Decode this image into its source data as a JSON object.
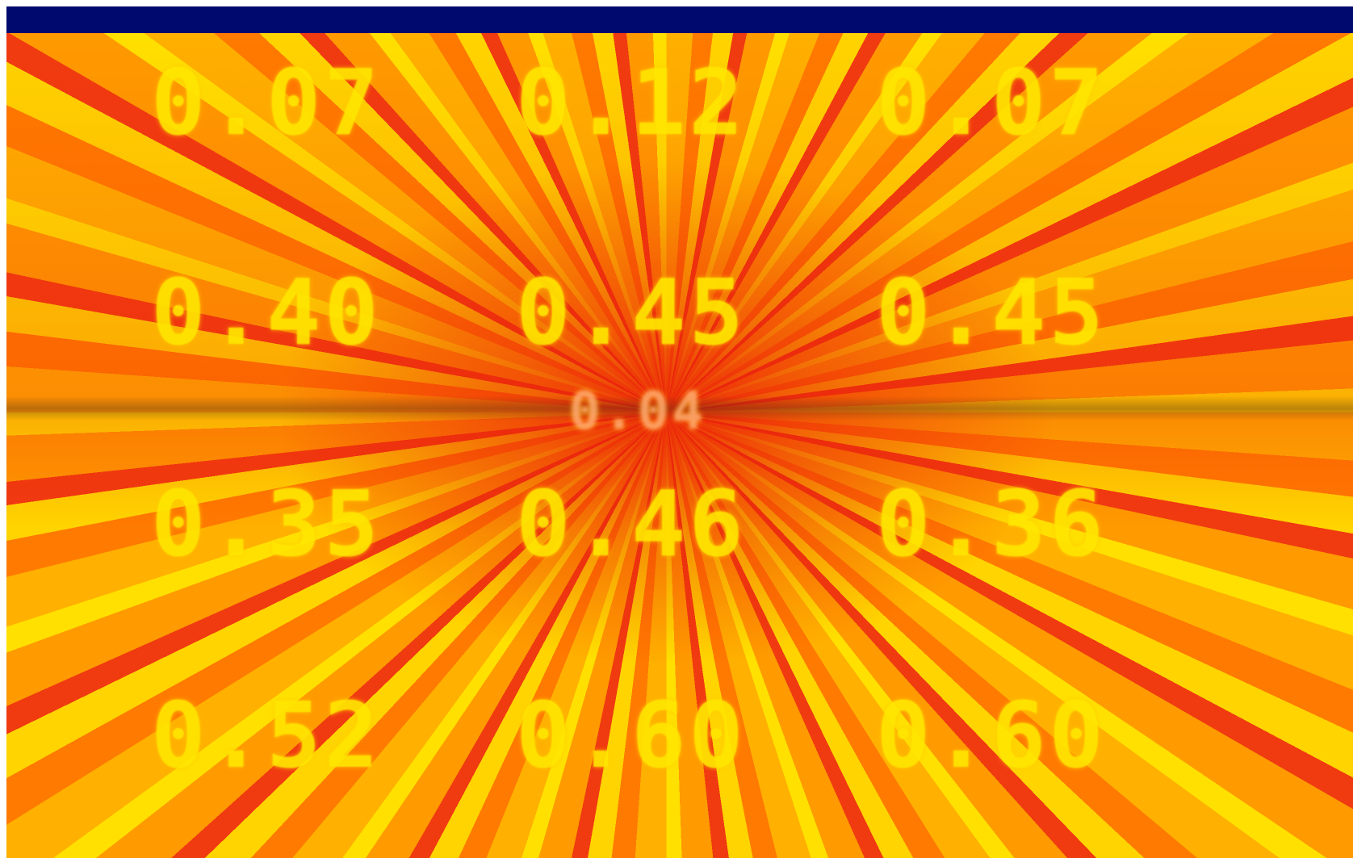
{
  "readings": {
    "rows": [
      [
        "0.07",
        "0.12",
        "0.07"
      ],
      [
        "0.40",
        "0.45",
        "0.45"
      ],
      [
        "0.35",
        "0.46",
        "0.36"
      ],
      [
        "0.52",
        "0.60",
        "0.60"
      ]
    ],
    "center": "0.04"
  }
}
